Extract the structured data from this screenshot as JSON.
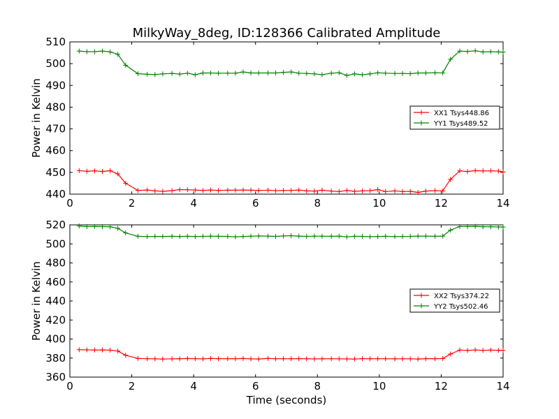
{
  "figure": {
    "title": "MilkyWay_8deg, ID:128366 Calibrated Amplitude",
    "xlabel": "Time (seconds)"
  },
  "colors": {
    "xx": "#ff0000",
    "yy": "#008000"
  },
  "chart_data": [
    {
      "type": "line",
      "ylabel": "Power in Kelvin",
      "xlim": [
        0,
        14
      ],
      "ylim": [
        440,
        510
      ],
      "xticks": [
        0,
        2,
        4,
        6,
        8,
        10,
        12,
        14
      ],
      "yticks": [
        440,
        450,
        460,
        470,
        480,
        490,
        500,
        510
      ],
      "legend_position": "right",
      "grid": false,
      "x": [
        0.3,
        0.55,
        0.8,
        1.05,
        1.3,
        1.55,
        1.8,
        2.2,
        2.5,
        2.75,
        3.0,
        3.3,
        3.55,
        3.8,
        4.05,
        4.3,
        4.55,
        4.8,
        5.1,
        5.35,
        5.6,
        5.85,
        6.1,
        6.4,
        6.65,
        6.9,
        7.15,
        7.4,
        7.65,
        7.9,
        8.15,
        8.45,
        8.7,
        8.95,
        9.2,
        9.45,
        9.7,
        9.95,
        10.2,
        10.5,
        10.75,
        11.0,
        11.25,
        11.5,
        11.8,
        12.05,
        12.3,
        12.6,
        12.85,
        13.1,
        13.35,
        13.6,
        13.85,
        14.0
      ],
      "series": [
        {
          "name": "XX1 Tsys448.86",
          "color": "#ff0000",
          "values": [
            450.8,
            450.5,
            450.7,
            450.4,
            450.8,
            449.3,
            445.0,
            441.7,
            441.9,
            441.5,
            441.3,
            441.6,
            442.1,
            442.0,
            441.9,
            441.7,
            441.9,
            441.7,
            441.8,
            441.8,
            441.9,
            441.8,
            441.7,
            441.8,
            441.6,
            441.7,
            441.7,
            441.9,
            441.5,
            441.4,
            441.8,
            441.4,
            441.2,
            441.7,
            441.3,
            441.5,
            441.6,
            442.1,
            441.2,
            441.5,
            441.2,
            441.3,
            440.8,
            441.4,
            441.6,
            441.5,
            446.8,
            450.7,
            450.4,
            450.8,
            450.7,
            450.7,
            450.6,
            450.2
          ]
        },
        {
          "name": "YY1 Tsys489.52",
          "color": "#008000",
          "values": [
            505.8,
            505.5,
            505.5,
            505.8,
            505.4,
            504.3,
            499.3,
            495.4,
            495.1,
            495.0,
            495.3,
            495.5,
            495.2,
            495.6,
            494.9,
            495.7,
            495.7,
            495.6,
            495.6,
            495.6,
            496.2,
            495.7,
            495.7,
            495.7,
            495.7,
            496.0,
            496.2,
            495.6,
            495.5,
            495.3,
            494.9,
            495.6,
            495.8,
            494.6,
            495.3,
            494.9,
            495.3,
            495.8,
            495.6,
            495.5,
            495.5,
            495.4,
            495.7,
            495.7,
            495.8,
            495.7,
            502.0,
            505.8,
            505.6,
            505.9,
            505.4,
            505.5,
            505.4,
            505.3
          ]
        }
      ]
    },
    {
      "type": "line",
      "ylabel": "Power in Kelvin",
      "xlim": [
        0,
        14
      ],
      "ylim": [
        360,
        520
      ],
      "xticks": [
        0,
        2,
        4,
        6,
        8,
        10,
        12,
        14
      ],
      "yticks": [
        360,
        380,
        400,
        420,
        440,
        460,
        480,
        500,
        520
      ],
      "legend_position": "right",
      "grid": false,
      "x": [
        0.3,
        0.55,
        0.8,
        1.05,
        1.3,
        1.55,
        1.8,
        2.2,
        2.5,
        2.75,
        3.0,
        3.3,
        3.55,
        3.8,
        4.05,
        4.3,
        4.55,
        4.8,
        5.1,
        5.35,
        5.6,
        5.85,
        6.1,
        6.4,
        6.65,
        6.9,
        7.15,
        7.4,
        7.65,
        7.9,
        8.15,
        8.45,
        8.7,
        8.95,
        9.2,
        9.45,
        9.7,
        9.95,
        10.2,
        10.5,
        10.75,
        11.0,
        11.25,
        11.5,
        11.8,
        12.05,
        12.3,
        12.6,
        12.85,
        13.1,
        13.35,
        13.6,
        13.85,
        14.0
      ],
      "series": [
        {
          "name": "XX2 Tsys374.22",
          "color": "#ff0000",
          "values": [
            388.8,
            388.6,
            388.4,
            388.5,
            388.3,
            387.4,
            383.0,
            379.6,
            379.3,
            379.2,
            378.9,
            379.2,
            379.3,
            379.5,
            379.4,
            379.2,
            379.6,
            379.3,
            379.4,
            379.4,
            379.5,
            379.2,
            379.0,
            379.6,
            379.3,
            379.3,
            379.3,
            379.4,
            379.3,
            379.1,
            379.2,
            379.3,
            379.2,
            379.1,
            379.0,
            379.4,
            379.3,
            379.3,
            379.3,
            379.2,
            379.2,
            379.2,
            379.0,
            379.4,
            379.3,
            379.5,
            384.2,
            388.4,
            388.1,
            388.5,
            388.1,
            388.4,
            388.2,
            388.1
          ]
        },
        {
          "name": "YY2 Tsys502.46",
          "color": "#008000",
          "values": [
            518.8,
            518.2,
            518.3,
            518.2,
            518.0,
            516.4,
            511.6,
            508.0,
            507.7,
            507.9,
            507.8,
            508.0,
            507.8,
            508.0,
            507.8,
            507.9,
            508.1,
            508.0,
            507.9,
            507.4,
            507.8,
            508.1,
            508.3,
            508.2,
            507.9,
            508.3,
            508.6,
            508.2,
            507.9,
            508.1,
            508.1,
            508.0,
            508.2,
            507.4,
            508.0,
            507.9,
            507.5,
            507.8,
            508.0,
            507.7,
            507.8,
            507.9,
            508.2,
            508.2,
            508.0,
            508.2,
            514.5,
            518.3,
            518.3,
            518.4,
            518.0,
            518.0,
            517.8,
            517.7
          ]
        }
      ]
    }
  ]
}
